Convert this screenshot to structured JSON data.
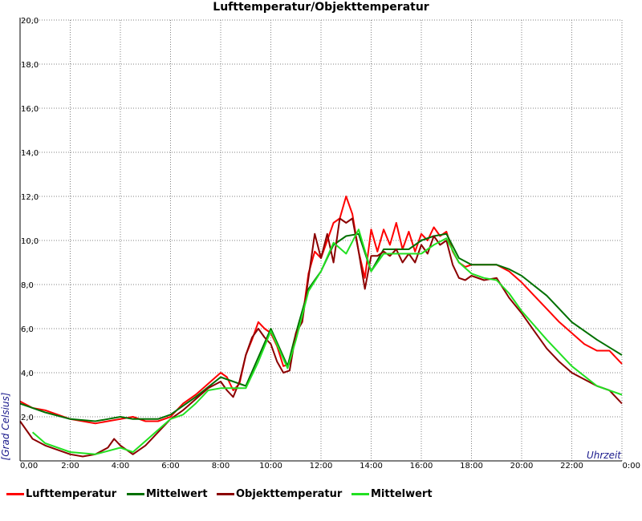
{
  "chart_data": {
    "type": "line",
    "title": "Lufttemperatur/Objekttemperatur",
    "xlabel": "Uhrzeit",
    "ylabel": "[Grad Celsius]",
    "xlim": [
      0,
      24
    ],
    "ylim": [
      0,
      20
    ],
    "x_ticks": [
      0,
      2,
      4,
      6,
      8,
      10,
      12,
      14,
      16,
      18,
      20,
      22,
      24
    ],
    "x_tick_labels": [
      "0,00",
      "2:00",
      "4:00",
      "6:00",
      "8:00",
      "10:00",
      "12:00",
      "14:00",
      "16:00",
      "18:00",
      "20:00",
      "22:00",
      "0:00"
    ],
    "y_ticks": [
      2,
      4,
      6,
      8,
      10,
      12,
      14,
      16,
      18,
      20
    ],
    "y_tick_labels": [
      "2,0",
      "4,0",
      "6,0",
      "8,0",
      "10,0",
      "12,0",
      "14,0",
      "16,0",
      "18,0",
      "20,0"
    ],
    "grid": true,
    "legend_position": "bottom",
    "series": [
      {
        "name": "Lufttemperatur",
        "color": "#ff0000",
        "x": [
          0,
          0.5,
          1,
          1.5,
          2,
          2.5,
          3,
          3.5,
          4,
          4.5,
          5,
          5.5,
          6,
          6.5,
          7,
          7.5,
          8,
          8.25,
          8.5,
          8.75,
          9,
          9.25,
          9.5,
          9.75,
          10,
          10.25,
          10.5,
          10.75,
          11,
          11.25,
          11.5,
          11.75,
          12,
          12.25,
          12.5,
          12.75,
          13,
          13.25,
          13.5,
          13.75,
          14,
          14.25,
          14.5,
          14.75,
          15,
          15.25,
          15.5,
          15.75,
          16,
          16.25,
          16.5,
          16.75,
          17,
          17.25,
          17.5,
          17.75,
          18,
          18.5,
          19,
          19.5,
          20,
          20.5,
          21,
          21.5,
          22,
          22.5,
          23,
          23.5,
          24
        ],
        "y": [
          2.7,
          2.4,
          2.3,
          2.1,
          1.9,
          1.8,
          1.7,
          1.8,
          1.9,
          2.0,
          1.8,
          1.8,
          2.0,
          2.6,
          3.0,
          3.5,
          4.0,
          3.8,
          3.2,
          3.5,
          4.8,
          5.5,
          6.3,
          6.0,
          5.8,
          5.2,
          4.3,
          4.4,
          5.8,
          6.4,
          8.5,
          9.5,
          9.2,
          10.0,
          10.8,
          11.0,
          12.0,
          11.2,
          9.5,
          8.3,
          10.5,
          9.5,
          10.5,
          9.8,
          10.8,
          9.6,
          10.4,
          9.5,
          10.3,
          10.0,
          10.6,
          10.2,
          10.4,
          9.5,
          9.0,
          8.8,
          8.9,
          8.9,
          8.9,
          8.6,
          8.1,
          7.5,
          6.9,
          6.3,
          5.8,
          5.3,
          5.0,
          5.0,
          4.4
        ]
      },
      {
        "name": "Mittelwert",
        "color": "#007000",
        "x": [
          0,
          1,
          2,
          3,
          3.5,
          4,
          4.5,
          5,
          5.5,
          6,
          6.5,
          7,
          8,
          8.5,
          9,
          9.5,
          10,
          10.67,
          11,
          11.5,
          12,
          12.5,
          13,
          13.5,
          14,
          14.5,
          15,
          15.5,
          16,
          16.5,
          17,
          17.5,
          18,
          18.5,
          19,
          19.5,
          20,
          21,
          22,
          23,
          24
        ],
        "y": [
          2.6,
          2.2,
          1.9,
          1.8,
          1.9,
          2.0,
          1.9,
          1.9,
          1.9,
          2.1,
          2.5,
          2.9,
          3.8,
          3.6,
          3.4,
          4.7,
          6.0,
          4.3,
          5.8,
          7.8,
          8.6,
          9.8,
          10.2,
          10.3,
          8.6,
          9.6,
          9.6,
          9.6,
          10.0,
          10.2,
          10.3,
          9.2,
          8.9,
          8.9,
          8.9,
          8.7,
          8.4,
          7.5,
          6.3,
          5.5,
          4.8
        ]
      },
      {
        "name": "Objekttemperatur",
        "color": "#8b0000",
        "x": [
          0,
          0.5,
          1,
          1.5,
          2,
          2.5,
          3,
          3.5,
          3.75,
          4,
          4.25,
          4.5,
          5,
          5.5,
          6,
          6.5,
          7,
          7.5,
          8,
          8.25,
          8.5,
          8.75,
          9,
          9.25,
          9.5,
          9.75,
          10,
          10.25,
          10.5,
          10.75,
          11,
          11.25,
          11.5,
          11.75,
          12,
          12.25,
          12.5,
          12.75,
          13,
          13.25,
          13.5,
          13.75,
          14,
          14.25,
          14.5,
          14.75,
          15,
          15.25,
          15.5,
          15.75,
          16,
          16.25,
          16.5,
          16.75,
          17,
          17.25,
          17.5,
          17.75,
          18,
          18.5,
          19,
          19.5,
          20,
          20.5,
          21,
          21.5,
          22,
          22.5,
          23,
          23.5,
          24
        ],
        "y": [
          1.8,
          1.0,
          0.7,
          0.5,
          0.3,
          0.2,
          0.3,
          0.6,
          1.0,
          0.7,
          0.5,
          0.3,
          0.7,
          1.3,
          1.9,
          2.3,
          2.8,
          3.3,
          3.6,
          3.2,
          2.9,
          3.6,
          4.8,
          5.6,
          6.0,
          5.6,
          5.3,
          4.5,
          4.0,
          4.1,
          5.8,
          6.3,
          8.3,
          10.3,
          9.2,
          10.3,
          9.0,
          11.0,
          10.8,
          11.0,
          9.5,
          7.8,
          9.3,
          9.3,
          9.5,
          9.3,
          9.6,
          9.0,
          9.4,
          9.0,
          9.8,
          9.4,
          10.2,
          9.8,
          10.0,
          8.9,
          8.3,
          8.2,
          8.4,
          8.2,
          8.3,
          7.4,
          6.7,
          5.9,
          5.1,
          4.5,
          4.0,
          3.7,
          3.4,
          3.2,
          2.6
        ]
      },
      {
        "name": "Mittelwert",
        "color": "#22e022",
        "x": [
          0.5,
          1,
          2,
          3,
          4,
          4.5,
          5,
          5.5,
          6,
          6.5,
          7,
          7.5,
          8,
          8.5,
          9,
          9.5,
          10,
          10.67,
          11,
          11.5,
          12,
          12.5,
          13,
          13.5,
          14,
          14.5,
          15,
          15.5,
          16,
          16.5,
          17,
          17.5,
          18,
          18.5,
          19,
          19.5,
          20,
          21,
          22,
          23,
          24
        ],
        "y": [
          1.3,
          0.8,
          0.4,
          0.3,
          0.6,
          0.4,
          0.9,
          1.4,
          1.9,
          2.1,
          2.6,
          3.2,
          3.3,
          3.3,
          3.3,
          4.5,
          5.9,
          4.2,
          5.5,
          7.7,
          8.6,
          9.9,
          9.4,
          10.5,
          8.6,
          9.4,
          9.4,
          9.4,
          9.4,
          9.8,
          10.1,
          9.0,
          8.5,
          8.3,
          8.2,
          7.6,
          6.8,
          5.5,
          4.3,
          3.4,
          3.0
        ]
      }
    ]
  }
}
